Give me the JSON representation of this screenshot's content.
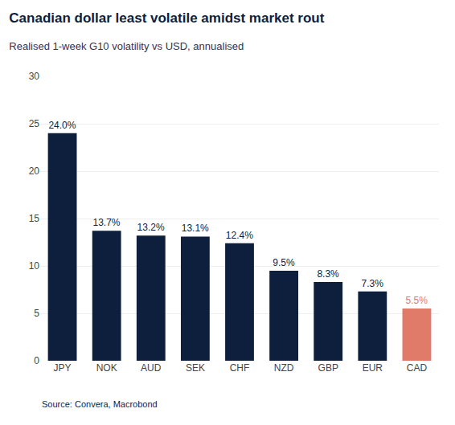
{
  "chart_data": {
    "type": "bar",
    "title": "Canadian dollar least volatile amidst market rout",
    "subtitle": "Realised 1-week G10 volatility vs USD, annualised",
    "source": "Source: Convera, Macrobond",
    "categories": [
      "JPY",
      "NOK",
      "AUD",
      "SEK",
      "CHF",
      "NZD",
      "GBP",
      "EUR",
      "CAD"
    ],
    "values": [
      24.0,
      13.7,
      13.2,
      13.1,
      12.4,
      9.5,
      8.3,
      7.3,
      5.5
    ],
    "value_labels": [
      "24.0%",
      "13.7%",
      "13.2%",
      "13.1%",
      "12.4%",
      "9.5%",
      "8.3%",
      "7.3%",
      "5.5%"
    ],
    "data_labels": true,
    "colors": [
      "#0d1f3c",
      "#0d1f3c",
      "#0d1f3c",
      "#0d1f3c",
      "#0d1f3c",
      "#0d1f3c",
      "#0d1f3c",
      "#0d1f3c",
      "#e07b6a"
    ],
    "ylim": [
      0,
      30
    ],
    "yticks": [
      0,
      5,
      10,
      15,
      20,
      25,
      30
    ],
    "grid": true
  }
}
